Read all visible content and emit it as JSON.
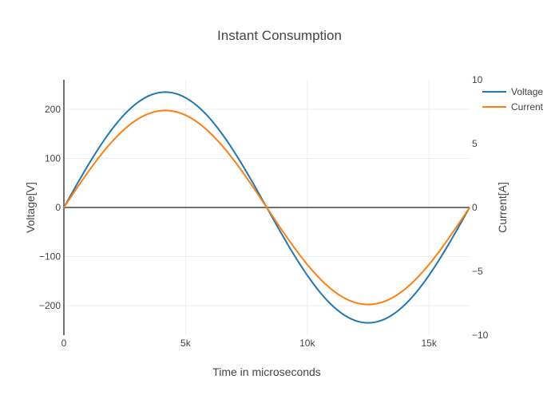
{
  "chart_data": {
    "type": "line",
    "title": "Instant Consumption",
    "xlabel": "Time in microseconds",
    "ylabel_left": "Voltage[V]",
    "ylabel_right": "Current[A]",
    "xlim": [
      0,
      16667
    ],
    "ylim_left": [
      -260,
      260
    ],
    "ylim_right": [
      -10,
      10
    ],
    "x_ticks": [
      0,
      5000,
      10000,
      15000
    ],
    "x_tick_labels": [
      "0",
      "5k",
      "10k",
      "15k"
    ],
    "y_left_ticks": [
      -200,
      -100,
      0,
      100,
      200
    ],
    "y_left_tick_labels": [
      "−200",
      "−100",
      "0",
      "100",
      "200"
    ],
    "y_right_ticks": [
      -10,
      -5,
      0,
      5,
      10
    ],
    "y_right_tick_labels": [
      "−10",
      "−5",
      "0",
      "5",
      "10"
    ],
    "grid": true,
    "legend_position": "top-right",
    "series": [
      {
        "name": "Voltage",
        "axis": "left",
        "color": "#1f77b4",
        "amplitude": 235,
        "period": 16667,
        "shape": "sine"
      },
      {
        "name": "Current",
        "axis": "right",
        "color": "#ff7f0e",
        "amplitude": 7.6,
        "period": 16667,
        "shape": "sine"
      }
    ]
  }
}
